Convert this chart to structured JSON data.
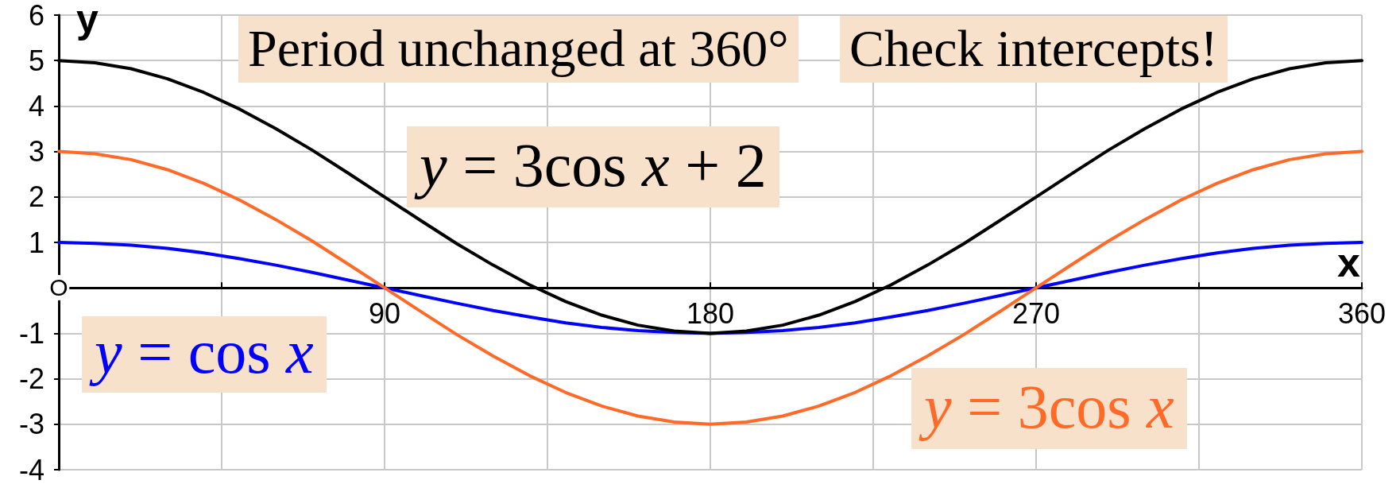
{
  "chart_data": {
    "type": "line",
    "xlabel": "x",
    "ylabel": "y",
    "annotations": [
      "Period unchanged at 360°",
      "Check intercepts!",
      "O"
    ],
    "x": [
      0,
      10,
      20,
      30,
      40,
      50,
      60,
      70,
      80,
      90,
      100,
      110,
      120,
      130,
      140,
      150,
      160,
      170,
      180,
      190,
      200,
      210,
      220,
      230,
      240,
      250,
      260,
      270,
      280,
      290,
      300,
      310,
      320,
      330,
      340,
      350,
      360
    ],
    "series": [
      {
        "name": "y = cos x",
        "color": "#0000ff",
        "values": [
          1,
          0.98,
          0.94,
          0.87,
          0.77,
          0.64,
          0.5,
          0.34,
          0.17,
          0,
          -0.17,
          -0.34,
          -0.5,
          -0.64,
          -0.77,
          -0.87,
          -0.94,
          -0.98,
          -1,
          -0.98,
          -0.94,
          -0.87,
          -0.77,
          -0.64,
          -0.5,
          -0.34,
          -0.17,
          0,
          0.17,
          0.34,
          0.5,
          0.64,
          0.77,
          0.87,
          0.94,
          0.98,
          1
        ]
      },
      {
        "name": "y = 3cos x",
        "color": "#ff6a28",
        "values": [
          3,
          2.95,
          2.82,
          2.6,
          2.3,
          1.93,
          1.5,
          1.03,
          0.52,
          0,
          -0.52,
          -1.03,
          -1.5,
          -1.93,
          -2.3,
          -2.6,
          -2.82,
          -2.95,
          -3,
          -2.95,
          -2.82,
          -2.6,
          -2.3,
          -1.93,
          -1.5,
          -1.03,
          -0.52,
          0,
          0.52,
          1.03,
          1.5,
          1.93,
          2.3,
          2.6,
          2.82,
          2.95,
          3
        ]
      },
      {
        "name": "y = 3cos x + 2",
        "color": "#000000",
        "values": [
          5,
          4.95,
          4.82,
          4.6,
          4.3,
          3.93,
          3.5,
          3.03,
          2.52,
          2,
          1.48,
          0.97,
          0.5,
          0.07,
          -0.3,
          -0.6,
          -0.82,
          -0.95,
          -1,
          -0.95,
          -0.82,
          -0.6,
          -0.3,
          0.07,
          0.5,
          0.97,
          1.48,
          2,
          2.52,
          3.03,
          3.5,
          3.93,
          4.3,
          4.6,
          4.82,
          4.95,
          5
        ]
      }
    ],
    "xlim": [
      0,
      360
    ],
    "ylim": [
      -4,
      6
    ],
    "xticks": [
      {
        "value": 0,
        "label": null
      },
      {
        "value": 45,
        "label": null
      },
      90,
      {
        "value": 135,
        "label": null
      },
      180,
      {
        "value": 225,
        "label": null
      },
      270,
      {
        "value": 315,
        "label": null
      },
      360
    ],
    "yticks": [
      -4,
      -3,
      -2,
      -1,
      {
        "value": 0,
        "label": null
      },
      1,
      2,
      3,
      4,
      5,
      6
    ],
    "grid": true,
    "marker": "none"
  }
}
